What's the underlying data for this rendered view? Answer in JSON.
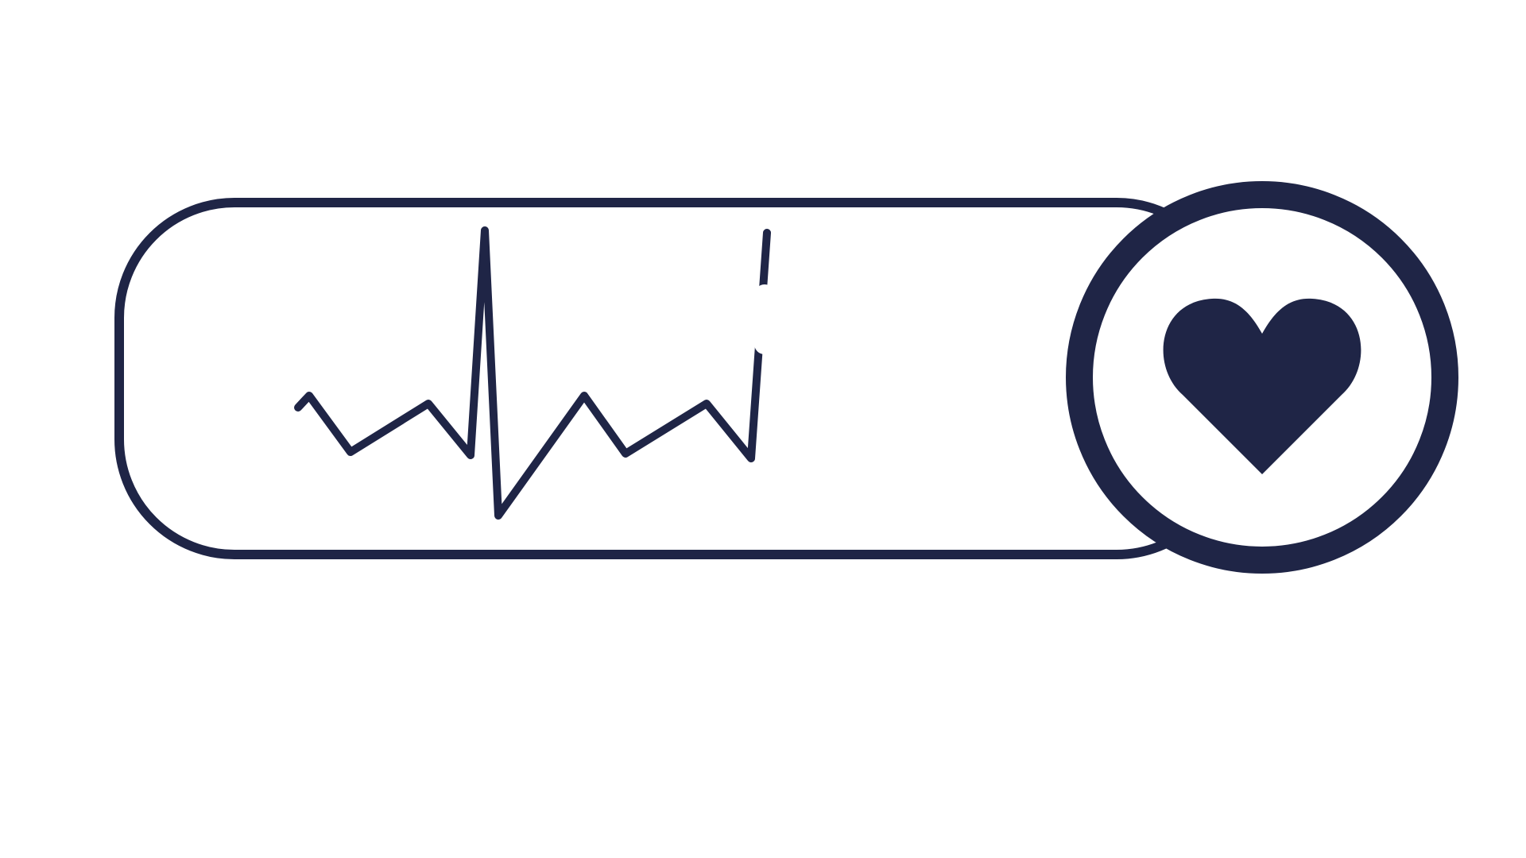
{
  "colors": {
    "ink": "#1f2546",
    "background": "#ffffff"
  },
  "icons": {
    "pill_frame": "rounded-rect-outline",
    "pulse_line": "heartbeat-line-icon",
    "heart_badge": "circle-outline-icon",
    "heart": "heart-icon"
  }
}
